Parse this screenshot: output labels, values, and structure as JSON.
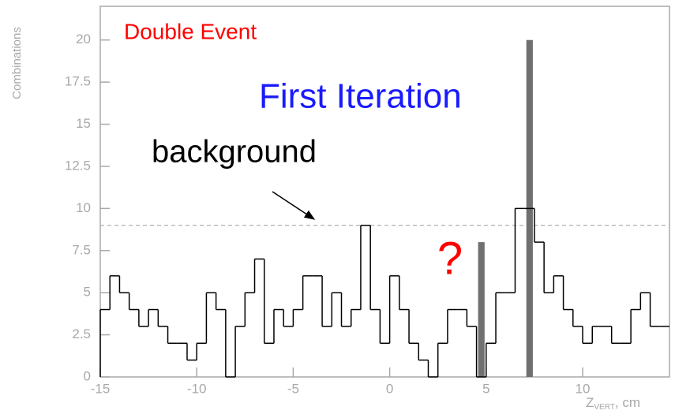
{
  "chart_data": {
    "type": "histogram",
    "y_label": "Combinations",
    "x_label": {
      "main": "Z",
      "sub": "VERT",
      "suffix": ", cm"
    },
    "bins": [
      -15,
      -14.5,
      -14,
      -13.5,
      -13,
      -12.5,
      -12,
      -11.5,
      -11,
      -10.5,
      -10,
      -9.5,
      -9,
      -8.5,
      -8,
      -7.5,
      -7,
      -6.5,
      -6,
      -5.5,
      -5,
      -4.5,
      -4,
      -3.5,
      -3,
      -2.5,
      -2,
      -1.5,
      -1,
      -0.5,
      0,
      0.5,
      1,
      1.5,
      2,
      2.5,
      3,
      3.5,
      4,
      4.5,
      5,
      5.5,
      6,
      6.5,
      7,
      7.5,
      8,
      8.5,
      9,
      9.5,
      10,
      10.5,
      11,
      11.5,
      12,
      12.5,
      13,
      13.5,
      14,
      14.5
    ],
    "values": [
      4,
      6,
      5,
      4,
      3,
      4,
      3,
      2,
      2,
      1,
      2,
      5,
      4,
      0,
      3,
      5,
      7,
      2,
      4,
      3,
      4,
      6,
      6,
      3,
      5,
      3,
      4,
      9,
      4,
      2,
      6,
      4,
      2,
      1,
      0,
      2,
      4,
      4,
      3,
      0,
      2,
      5,
      5,
      10,
      10,
      8,
      5,
      6,
      4,
      3,
      2,
      3,
      3,
      2,
      2,
      4,
      5,
      3,
      3
    ],
    "color": "#000000",
    "bars": [
      {
        "bins": [
          4.5,
          5
        ],
        "value": 8
      },
      {
        "bins": [
          7,
          7.5
        ],
        "value": 20
      }
    ],
    "bar_color": "#707070",
    "background_level": 9,
    "annotations": {
      "double_event": "Double Event",
      "iteration": "First Iteration",
      "background": "background",
      "question": "?"
    },
    "xlim": [
      -15,
      14.5
    ],
    "ylim": [
      0,
      22
    ],
    "xticks": [
      -15,
      -10,
      -5,
      0,
      5,
      10
    ],
    "yticks": [
      0,
      2.5,
      5,
      7.5,
      10,
      12.5,
      15,
      17.5,
      20
    ]
  }
}
